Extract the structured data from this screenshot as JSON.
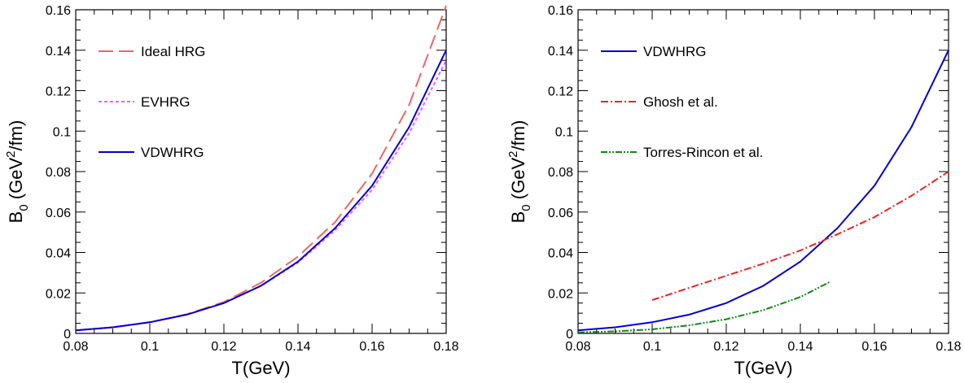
{
  "chart_data": [
    {
      "type": "line",
      "xlabel": "T(GeV)",
      "ylabel": {
        "main": "B",
        "sub": "0",
        "unit_pre": " (GeV",
        "sup": "2",
        "unit_post": "/fm)"
      },
      "xlim": [
        0.08,
        0.18
      ],
      "ylim": [
        0,
        0.16
      ],
      "xticks": [
        "0.08",
        "0.1",
        "0.12",
        "0.14",
        "0.16",
        "0.18"
      ],
      "yticks": [
        "0",
        "0.02",
        "0.04",
        "0.06",
        "0.08",
        "0.1",
        "0.12",
        "0.14",
        "0.16"
      ],
      "legend_position": "top-left",
      "series": [
        {
          "name": "Ideal HRG",
          "color": "#ee6666",
          "style": "dashed",
          "x": [
            0.08,
            0.09,
            0.1,
            0.11,
            0.12,
            0.13,
            0.14,
            0.15,
            0.16,
            0.17,
            0.18
          ],
          "y": [
            0.0015,
            0.003,
            0.0055,
            0.0095,
            0.0155,
            0.025,
            0.038,
            0.055,
            0.079,
            0.113,
            0.162
          ]
        },
        {
          "name": "EVHRG",
          "color": "#ff55ff",
          "style": "dotted",
          "x": [
            0.08,
            0.09,
            0.1,
            0.11,
            0.12,
            0.13,
            0.14,
            0.15,
            0.16,
            0.17,
            0.18
          ],
          "y": [
            0.0015,
            0.003,
            0.0055,
            0.0093,
            0.015,
            0.0235,
            0.035,
            0.051,
            0.071,
            0.099,
            0.135
          ]
        },
        {
          "name": "VDWHRG",
          "color": "#0000cc",
          "style": "solid",
          "x": [
            0.08,
            0.09,
            0.1,
            0.11,
            0.12,
            0.13,
            0.14,
            0.15,
            0.16,
            0.17,
            0.18
          ],
          "y": [
            0.0015,
            0.003,
            0.0055,
            0.0093,
            0.015,
            0.0235,
            0.0355,
            0.052,
            0.073,
            0.102,
            0.14
          ]
        }
      ]
    },
    {
      "type": "line",
      "xlabel": "T(GeV)",
      "ylabel": {
        "main": "B",
        "sub": "0",
        "unit_pre": " (GeV",
        "sup": "2",
        "unit_post": "/fm)"
      },
      "xlim": [
        0.08,
        0.18
      ],
      "ylim": [
        0,
        0.16
      ],
      "xticks": [
        "0.08",
        "0.1",
        "0.12",
        "0.14",
        "0.16",
        "0.18"
      ],
      "yticks": [
        "0",
        "0.02",
        "0.04",
        "0.06",
        "0.08",
        "0.1",
        "0.12",
        "0.14",
        "0.16"
      ],
      "legend_position": "top-left",
      "series": [
        {
          "name": "VDWHRG",
          "color": "#0000cc",
          "style": "solid",
          "x": [
            0.08,
            0.09,
            0.1,
            0.11,
            0.12,
            0.13,
            0.14,
            0.15,
            0.16,
            0.17,
            0.18
          ],
          "y": [
            0.0015,
            0.003,
            0.0055,
            0.0093,
            0.015,
            0.0235,
            0.0355,
            0.052,
            0.073,
            0.102,
            0.14
          ]
        },
        {
          "name": "Ghosh et al.",
          "color": "#ee2222",
          "style": "dashdot",
          "x": [
            0.1,
            0.11,
            0.12,
            0.13,
            0.14,
            0.15,
            0.16,
            0.17,
            0.18
          ],
          "y": [
            0.0165,
            0.0225,
            0.0285,
            0.0345,
            0.041,
            0.049,
            0.0575,
            0.068,
            0.08
          ]
        },
        {
          "name": "Torres-Rincon et al.",
          "color": "#118811",
          "style": "dashdotdot",
          "x": [
            0.08,
            0.09,
            0.1,
            0.11,
            0.12,
            0.13,
            0.14,
            0.148
          ],
          "y": [
            0.0005,
            0.001,
            0.002,
            0.004,
            0.007,
            0.0115,
            0.018,
            0.0255
          ]
        }
      ]
    }
  ]
}
